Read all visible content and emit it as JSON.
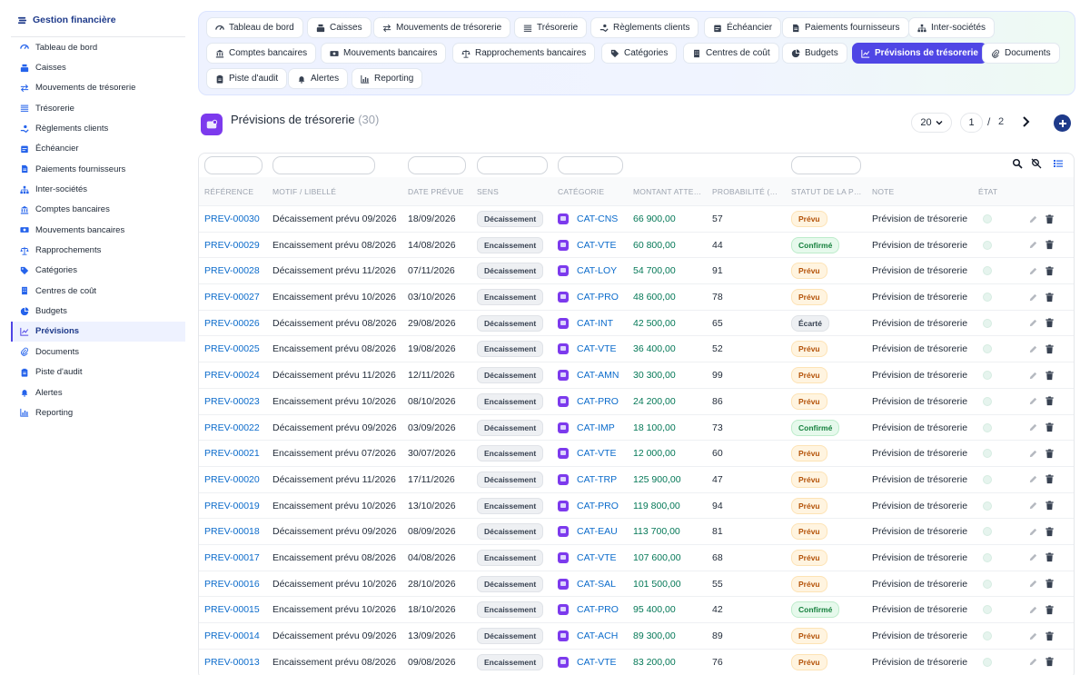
{
  "sidebar": {
    "brand": "Gestion financière",
    "items": [
      {
        "label": "Tableau de bord",
        "icon": "dashboard-icon"
      },
      {
        "label": "Caisses",
        "icon": "cash-register-icon"
      },
      {
        "label": "Mouvements de trésorerie",
        "icon": "arrows-exchange-icon"
      },
      {
        "label": "Trésorerie",
        "icon": "list-lines-icon"
      },
      {
        "label": "Règlements clients",
        "icon": "hand-coin-icon"
      },
      {
        "label": "Échéancier",
        "icon": "calendar-icon"
      },
      {
        "label": "Paiements fournisseurs",
        "icon": "document-icon"
      },
      {
        "label": "Inter-sociétés",
        "icon": "sitemap-icon"
      },
      {
        "label": "Comptes bancaires",
        "icon": "bank-icon"
      },
      {
        "label": "Mouvements bancaires",
        "icon": "money-bill-icon"
      },
      {
        "label": "Rapprochements",
        "icon": "scale-icon"
      },
      {
        "label": "Catégories",
        "icon": "tags-icon"
      },
      {
        "label": "Centres de coût",
        "icon": "building-icon"
      },
      {
        "label": "Budgets",
        "icon": "pie-chart-icon"
      },
      {
        "label": "Prévisions",
        "icon": "line-chart-icon",
        "active": true
      },
      {
        "label": "Documents",
        "icon": "paperclip-icon"
      },
      {
        "label": "Piste d'audit",
        "icon": "clipboard-icon"
      },
      {
        "label": "Alertes",
        "icon": "bell-icon"
      },
      {
        "label": "Reporting",
        "icon": "bar-chart-icon"
      }
    ]
  },
  "tabs": [
    {
      "label": "Tableau de bord",
      "icon": "dashboard-icon"
    },
    {
      "label": "Caisses",
      "icon": "cash-register-icon"
    },
    {
      "label": "Mouvements de trésorerie",
      "icon": "arrows-exchange-icon"
    },
    {
      "label": "Trésorerie",
      "icon": "list-lines-icon"
    },
    {
      "label": "Règlements clients",
      "icon": "hand-coin-icon"
    },
    {
      "label": "Échéancier",
      "icon": "calendar-icon"
    },
    {
      "label": "Paiements fournisseurs",
      "icon": "document-icon"
    },
    {
      "label": "Inter-sociétés",
      "icon": "sitemap-icon"
    },
    {
      "label": "Comptes bancaires",
      "icon": "bank-icon"
    },
    {
      "label": "Mouvements bancaires",
      "icon": "money-bill-icon"
    },
    {
      "label": "Rapprochements bancaires",
      "icon": "scale-icon"
    },
    {
      "label": "Catégories",
      "icon": "tags-icon"
    },
    {
      "label": "Centres de coût",
      "icon": "building-icon"
    },
    {
      "label": "Budgets",
      "icon": "pie-chart-icon"
    },
    {
      "label": "Prévisions de trésorerie",
      "icon": "line-chart-icon",
      "active": true
    },
    {
      "label": "Documents",
      "icon": "paperclip-icon"
    },
    {
      "label": "Piste d'audit",
      "icon": "clipboard-icon"
    },
    {
      "label": "Alertes",
      "icon": "bell-icon"
    },
    {
      "label": "Reporting",
      "icon": "bar-chart-icon"
    }
  ],
  "page": {
    "title": "Prévisions de trésorerie",
    "count": "(30)",
    "per_page": "20",
    "current_page": "1",
    "slash": "/",
    "total_pages": "2"
  },
  "table": {
    "columns": [
      "RÉFÉRENCE",
      "MOTIF / LIBELLÉ",
      "DATE PRÉVUE",
      "SENS",
      "CATÉGORIE",
      "MONTANT ATTE…",
      "PROBABILITÉ (…",
      "STATUT DE LA P…",
      "NOTE",
      "ÉTAT"
    ],
    "rows": [
      {
        "ref": "PREV-00030",
        "motif": "Décaissement prévu 09/2026",
        "date": "18/09/2026",
        "sens": "Décaissement",
        "cat": "CAT-CNS",
        "amount": "66 900,00",
        "prob": "57",
        "status": "Prévu",
        "note": "Prévision de trésorerie"
      },
      {
        "ref": "PREV-00029",
        "motif": "Encaissement prévu 08/2026",
        "date": "14/08/2026",
        "sens": "Encaissement",
        "cat": "CAT-VTE",
        "amount": "60 800,00",
        "prob": "44",
        "status": "Confirmé",
        "note": "Prévision de trésorerie"
      },
      {
        "ref": "PREV-00028",
        "motif": "Décaissement prévu 11/2026",
        "date": "07/11/2026",
        "sens": "Décaissement",
        "cat": "CAT-LOY",
        "amount": "54 700,00",
        "prob": "91",
        "status": "Prévu",
        "note": "Prévision de trésorerie"
      },
      {
        "ref": "PREV-00027",
        "motif": "Encaissement prévu 10/2026",
        "date": "03/10/2026",
        "sens": "Encaissement",
        "cat": "CAT-PRO",
        "amount": "48 600,00",
        "prob": "78",
        "status": "Prévu",
        "note": "Prévision de trésorerie"
      },
      {
        "ref": "PREV-00026",
        "motif": "Décaissement prévu 08/2026",
        "date": "29/08/2026",
        "sens": "Décaissement",
        "cat": "CAT-INT",
        "amount": "42 500,00",
        "prob": "65",
        "status": "Écarté",
        "note": "Prévision de trésorerie"
      },
      {
        "ref": "PREV-00025",
        "motif": "Encaissement prévu 08/2026",
        "date": "19/08/2026",
        "sens": "Encaissement",
        "cat": "CAT-VTE",
        "amount": "36 400,00",
        "prob": "52",
        "status": "Prévu",
        "note": "Prévision de trésorerie"
      },
      {
        "ref": "PREV-00024",
        "motif": "Décaissement prévu 11/2026",
        "date": "12/11/2026",
        "sens": "Décaissement",
        "cat": "CAT-AMN",
        "amount": "30 300,00",
        "prob": "99",
        "status": "Prévu",
        "note": "Prévision de trésorerie"
      },
      {
        "ref": "PREV-00023",
        "motif": "Encaissement prévu 10/2026",
        "date": "08/10/2026",
        "sens": "Encaissement",
        "cat": "CAT-PRO",
        "amount": "24 200,00",
        "prob": "86",
        "status": "Prévu",
        "note": "Prévision de trésorerie"
      },
      {
        "ref": "PREV-00022",
        "motif": "Décaissement prévu 09/2026",
        "date": "03/09/2026",
        "sens": "Décaissement",
        "cat": "CAT-IMP",
        "amount": "18 100,00",
        "prob": "73",
        "status": "Confirmé",
        "note": "Prévision de trésorerie"
      },
      {
        "ref": "PREV-00021",
        "motif": "Encaissement prévu 07/2026",
        "date": "30/07/2026",
        "sens": "Encaissement",
        "cat": "CAT-VTE",
        "amount": "12 000,00",
        "prob": "60",
        "status": "Prévu",
        "note": "Prévision de trésorerie"
      },
      {
        "ref": "PREV-00020",
        "motif": "Décaissement prévu 11/2026",
        "date": "17/11/2026",
        "sens": "Décaissement",
        "cat": "CAT-TRP",
        "amount": "125 900,00",
        "prob": "47",
        "status": "Prévu",
        "note": "Prévision de trésorerie"
      },
      {
        "ref": "PREV-00019",
        "motif": "Encaissement prévu 10/2026",
        "date": "13/10/2026",
        "sens": "Encaissement",
        "cat": "CAT-PRO",
        "amount": "119 800,00",
        "prob": "94",
        "status": "Prévu",
        "note": "Prévision de trésorerie"
      },
      {
        "ref": "PREV-00018",
        "motif": "Décaissement prévu 09/2026",
        "date": "08/09/2026",
        "sens": "Décaissement",
        "cat": "CAT-EAU",
        "amount": "113 700,00",
        "prob": "81",
        "status": "Prévu",
        "note": "Prévision de trésorerie"
      },
      {
        "ref": "PREV-00017",
        "motif": "Encaissement prévu 08/2026",
        "date": "04/08/2026",
        "sens": "Encaissement",
        "cat": "CAT-VTE",
        "amount": "107 600,00",
        "prob": "68",
        "status": "Prévu",
        "note": "Prévision de trésorerie"
      },
      {
        "ref": "PREV-00016",
        "motif": "Décaissement prévu 10/2026",
        "date": "28/10/2026",
        "sens": "Décaissement",
        "cat": "CAT-SAL",
        "amount": "101 500,00",
        "prob": "55",
        "status": "Prévu",
        "note": "Prévision de trésorerie"
      },
      {
        "ref": "PREV-00015",
        "motif": "Encaissement prévu 10/2026",
        "date": "18/10/2026",
        "sens": "Encaissement",
        "cat": "CAT-PRO",
        "amount": "95 400,00",
        "prob": "42",
        "status": "Confirmé",
        "note": "Prévision de trésorerie"
      },
      {
        "ref": "PREV-00014",
        "motif": "Décaissement prévu 09/2026",
        "date": "13/09/2026",
        "sens": "Décaissement",
        "cat": "CAT-ACH",
        "amount": "89 300,00",
        "prob": "89",
        "status": "Prévu",
        "note": "Prévision de trésorerie"
      },
      {
        "ref": "PREV-00013",
        "motif": "Encaissement prévu 08/2026",
        "date": "09/08/2026",
        "sens": "Encaissement",
        "cat": "CAT-VTE",
        "amount": "83 200,00",
        "prob": "76",
        "status": "Prévu",
        "note": "Prévision de trésorerie"
      }
    ]
  },
  "colors": {
    "accent": "#4f46e5",
    "brand": "#1e3a8a",
    "link": "#0b6bcb",
    "amount": "#047857"
  }
}
